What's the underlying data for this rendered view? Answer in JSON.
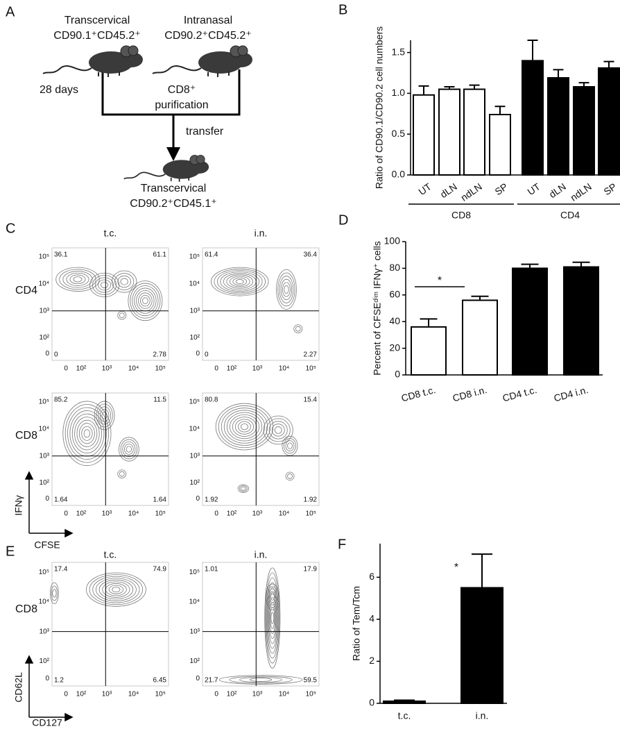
{
  "panel_labels": [
    "A",
    "B",
    "C",
    "D",
    "E",
    "F"
  ],
  "diagram": {
    "donor1": {
      "title": "Transcervical",
      "marker": "CD90.1⁺CD45.2⁺"
    },
    "donor2": {
      "title": "Intranasal",
      "marker": "CD90.2⁺CD45.2⁺"
    },
    "days": "28 days",
    "purification": [
      "CD8⁺",
      "purification"
    ],
    "transfer": "transfer",
    "recipient": {
      "title": "Transcervical",
      "marker": "CD90.2⁺CD45.1⁺"
    }
  },
  "flow_ticks": [
    "0",
    "10²",
    "10³",
    "10⁴",
    "10⁵"
  ],
  "flow_c": {
    "columns": [
      "t.c.",
      "i.n."
    ],
    "rows": [
      "CD4",
      "CD8"
    ],
    "quadrants": [
      [
        [
          "36.1",
          "61.1",
          "0",
          "2.78"
        ],
        [
          "61.4",
          "36.4",
          "0",
          "2.27"
        ]
      ],
      [
        [
          "85.2",
          "11.5",
          "1.64",
          "1.64"
        ],
        [
          "80.8",
          "15.4",
          "1.92",
          "1.92"
        ]
      ]
    ],
    "y_axis": "IFNγ",
    "x_axis": "CFSE"
  },
  "flow_e": {
    "columns": [
      "t.c.",
      "i.n."
    ],
    "rows": [
      "CD8"
    ],
    "quadrants": [
      [
        [
          "17.4",
          "74.9",
          "1.2",
          "6.45"
        ],
        [
          "1.01",
          "17.9",
          "21.7",
          "59.5"
        ]
      ]
    ],
    "y_axis": "CD62L",
    "x_axis": "CD127"
  },
  "chart_data": [
    {
      "type": "bar",
      "y_label": "Ratio of CD90.1/CD90.2 cell numbers",
      "categories": [
        "UT",
        "dLN",
        "ndLN",
        "SP",
        "UT",
        "dLN",
        "ndLN",
        "SP"
      ],
      "series": [
        {
          "name": "CD8",
          "color": "#ffffff",
          "values": [
            0.98,
            1.05,
            1.05,
            0.74,
            null,
            null,
            null,
            null
          ],
          "errors": [
            0.11,
            0.03,
            0.05,
            0.1,
            null,
            null,
            null,
            null
          ]
        },
        {
          "name": "CD4",
          "color": "#000000",
          "values": [
            null,
            null,
            null,
            null,
            1.4,
            1.19,
            1.08,
            1.31
          ],
          "errors": [
            null,
            null,
            null,
            null,
            0.25,
            0.1,
            0.05,
            0.08
          ]
        }
      ],
      "ylim": [
        0,
        1.65
      ],
      "yticks": [
        {
          "value": 0,
          "label": "0.0"
        },
        {
          "value": 0.5,
          "label": "0.5"
        },
        {
          "value": 1,
          "label": "1.0"
        },
        {
          "value": 1.5,
          "label": "1.5"
        }
      ]
    },
    {
      "type": "bar",
      "y_label": "Percent of CFSEᵈⁱᵐ IFNγ⁺ cells",
      "categories": [
        "CD8 t.c.",
        "CD8 i.n.",
        "CD4 t.c.",
        "CD4 i.n."
      ],
      "values": [
        36,
        56,
        80,
        81
      ],
      "errors": [
        6,
        3,
        3,
        3.5
      ],
      "colors": [
        "#ffffff",
        "#ffffff",
        "#000000",
        "#000000"
      ],
      "annotation": "*",
      "ylim": [
        0,
        100
      ],
      "yticks": [
        0,
        20,
        40,
        60,
        80,
        100
      ]
    },
    {
      "type": "bar",
      "y_label": "Ratio of Tem/Tcm",
      "categories": [
        "t.c.",
        "i.n."
      ],
      "values": [
        0.1,
        5.5
      ],
      "errors": [
        0.05,
        1.6
      ],
      "colors": [
        "#000000",
        "#000000"
      ],
      "annotation": "*",
      "ylim": [
        0,
        7.6
      ],
      "yticks": [
        0,
        2,
        4,
        6
      ]
    }
  ]
}
